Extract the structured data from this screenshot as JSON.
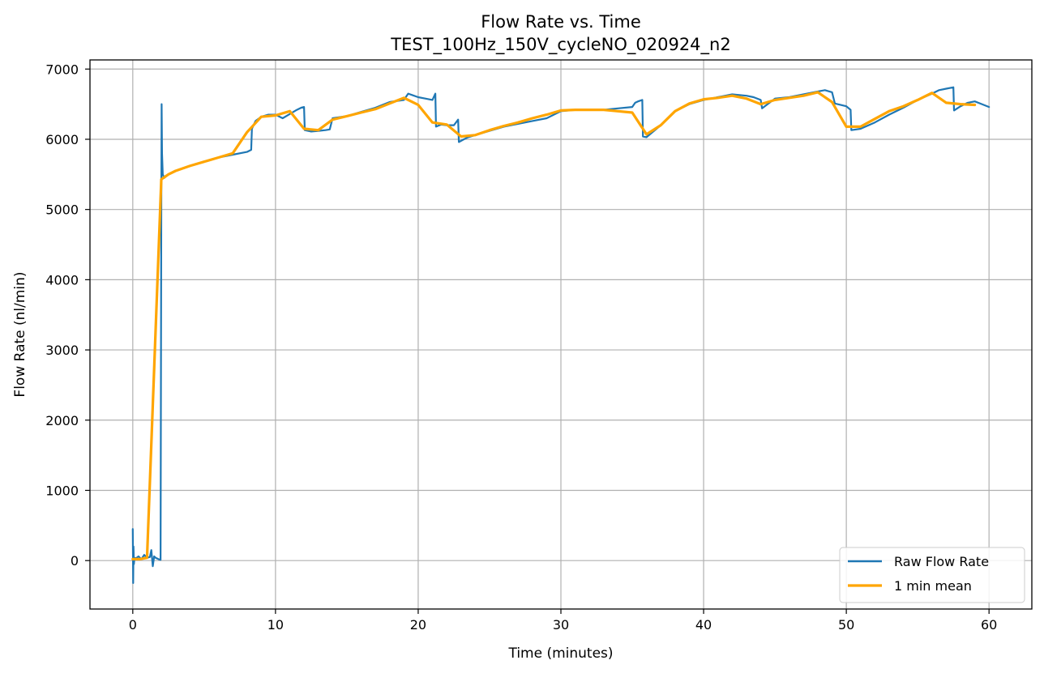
{
  "chart_data": {
    "type": "line",
    "title": "Flow Rate vs. Time",
    "subtitle": "TEST_100Hz_150V_cycleNO_020924_n2",
    "xlabel": "Time (minutes)",
    "ylabel": "Flow Rate (nl/min)",
    "xlim": [
      -3,
      63
    ],
    "ylim": [
      -690,
      7130
    ],
    "xticks": [
      0,
      10,
      20,
      30,
      40,
      50,
      60
    ],
    "yticks": [
      0,
      1000,
      2000,
      3000,
      4000,
      5000,
      6000,
      7000
    ],
    "grid": true,
    "legend_position": "lower-right",
    "series": [
      {
        "name": "Raw Flow Rate",
        "color": "#1f77b4",
        "x": [
          0,
          0.03,
          0.05,
          0.08,
          0.12,
          0.2,
          0.4,
          0.6,
          0.8,
          1.0,
          1.2,
          1.3,
          1.4,
          1.5,
          1.6,
          1.8,
          1.95,
          2.0,
          2.02,
          2.05,
          2.1,
          2.2,
          2.5,
          3,
          4,
          5,
          6,
          7,
          8,
          8.3,
          8.35,
          8.6,
          9,
          9.5,
          10,
          10.5,
          11,
          11.5,
          11.8,
          12,
          12.05,
          12.5,
          13,
          13.5,
          13.8,
          14,
          15,
          16,
          17,
          18,
          19,
          19.3,
          20,
          20.5,
          21,
          21.2,
          21.25,
          21.6,
          22,
          22.5,
          22.8,
          22.85,
          23.2,
          23.5,
          24,
          25,
          26,
          27,
          28,
          29,
          30,
          31,
          32,
          33,
          34,
          35,
          35.2,
          35.4,
          35.7,
          35.75,
          36,
          37,
          38,
          39,
          40,
          41,
          42,
          43,
          43.5,
          44,
          44.1,
          45,
          46,
          47,
          48,
          48.5,
          49,
          49.2,
          50,
          50.3,
          50.35,
          51,
          52,
          53,
          54,
          55,
          56,
          56.5,
          57,
          57.5,
          57.55,
          58,
          58.5,
          59,
          59.5,
          60
        ],
        "y": [
          450,
          -320,
          200,
          -50,
          40,
          30,
          60,
          20,
          80,
          40,
          50,
          150,
          -80,
          60,
          40,
          20,
          10,
          5000,
          6500,
          5800,
          5500,
          5450,
          5500,
          5550,
          5620,
          5680,
          5740,
          5780,
          5820,
          5850,
          6150,
          6260,
          6320,
          6350,
          6350,
          6300,
          6360,
          6420,
          6450,
          6460,
          6130,
          6110,
          6120,
          6130,
          6140,
          6300,
          6330,
          6390,
          6450,
          6530,
          6560,
          6650,
          6600,
          6580,
          6560,
          6650,
          6180,
          6210,
          6200,
          6200,
          6280,
          5960,
          6000,
          6030,
          6060,
          6120,
          6180,
          6220,
          6260,
          6300,
          6400,
          6420,
          6420,
          6420,
          6440,
          6460,
          6520,
          6540,
          6560,
          6040,
          6030,
          6200,
          6400,
          6500,
          6560,
          6600,
          6640,
          6620,
          6600,
          6560,
          6440,
          6580,
          6600,
          6640,
          6680,
          6700,
          6670,
          6510,
          6470,
          6420,
          6130,
          6150,
          6240,
          6350,
          6450,
          6560,
          6650,
          6700,
          6720,
          6740,
          6410,
          6470,
          6520,
          6540,
          6500,
          6460
        ]
      },
      {
        "name": "1 min mean",
        "color": "#ffa500",
        "x": [
          0,
          0.5,
          1.0,
          2.0,
          2.5,
          3,
          4,
          5,
          6,
          7,
          8,
          9,
          10,
          11,
          12,
          13,
          14,
          15,
          16,
          17,
          18,
          19,
          20,
          21,
          22,
          23,
          24,
          25,
          26,
          27,
          28,
          29,
          30,
          31,
          32,
          33,
          34,
          35,
          36,
          37,
          38,
          39,
          40,
          41,
          42,
          43,
          44,
          45,
          46,
          47,
          48,
          49,
          50,
          51,
          52,
          53,
          54,
          55,
          56,
          57,
          58,
          59
        ],
        "y": [
          20,
          20,
          40,
          5430,
          5500,
          5550,
          5620,
          5680,
          5740,
          5800,
          6100,
          6320,
          6340,
          6400,
          6150,
          6130,
          6280,
          6330,
          6380,
          6430,
          6510,
          6590,
          6490,
          6240,
          6210,
          6040,
          6060,
          6130,
          6190,
          6240,
          6300,
          6350,
          6410,
          6420,
          6420,
          6420,
          6400,
          6380,
          6070,
          6200,
          6400,
          6510,
          6570,
          6590,
          6620,
          6580,
          6500,
          6560,
          6590,
          6620,
          6670,
          6530,
          6180,
          6180,
          6290,
          6400,
          6470,
          6560,
          6660,
          6520,
          6500,
          6490
        ]
      }
    ]
  }
}
